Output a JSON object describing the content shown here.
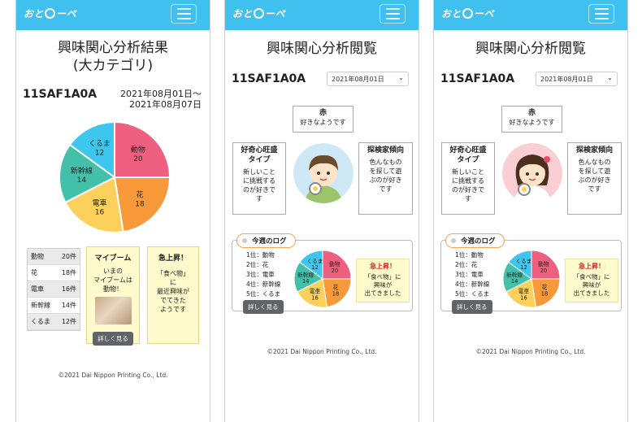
{
  "brand": {
    "logo_text_a": "おと",
    "logo_text_b": "ーペ"
  },
  "colors": {
    "header": "#3fc0ee",
    "doubutsu": "#ef5f7f",
    "hana": "#f99a3a",
    "densha": "#fdd05b",
    "shinkansen": "#43c0a9",
    "kuruma": "#3ec7ee"
  },
  "panel1": {
    "title": "興味関心分析結果",
    "subtitle": "(大カテゴリ)",
    "user_id": "11SAF1A0A",
    "date_from": "2021年08月01日～",
    "date_to": "2021年08月07日",
    "chart_data": {
      "type": "pie",
      "categories": [
        "動物",
        "花",
        "電車",
        "新幹線",
        "くるま"
      ],
      "values": [
        20,
        18,
        16,
        14,
        12
      ]
    },
    "ranking": [
      {
        "label": "動物",
        "count": "20件"
      },
      {
        "label": "花",
        "count": "18件"
      },
      {
        "label": "電車",
        "count": "16件"
      },
      {
        "label": "新幹線",
        "count": "14件"
      },
      {
        "label": "くるま",
        "count": "12件"
      }
    ],
    "myboom": {
      "title": "マイブーム",
      "l1": "いまの",
      "l2": "マイブームは",
      "l3": "動物！",
      "button": "詳しく見る"
    },
    "rising": {
      "title": "急上昇！",
      "l1": "「食べ物」",
      "l2": "に",
      "l3": "最近興味が",
      "l4": "でてきた",
      "l5": "ようです"
    },
    "copyright": "©2021 Dai Nippon Printing Co., Ltd."
  },
  "view": {
    "title": "興味関心分析閲覧",
    "user_id": "11SAF1A0A",
    "date_select": "2021年08月01日",
    "top_bubble": {
      "b": "赤",
      "t": "好きなようです"
    },
    "left_bubble": {
      "b1": "好奇心旺盛",
      "b2": "タイプ",
      "t1": "新しいこと",
      "t2": "に挑戦する",
      "t3": "のが好きで",
      "t4": "す"
    },
    "right_bubble": {
      "b1": "探検家傾向",
      "t1": "色んなもの",
      "t2": "を探して遊",
      "t3": "ぶのが好き",
      "t4": "です"
    },
    "log_title": "今週のログ",
    "log_items": [
      "1位：動物",
      "2位：花",
      "3位：電車",
      "4位：新幹線",
      "5位：くるま"
    ],
    "log_button": "詳しく見る",
    "rising": {
      "t": "急上昇！",
      "l1": "「食べ物」に",
      "l2": "興味が",
      "l3": "出てきました"
    },
    "copyright": "©2021 Dai Nippon Printing Co., Ltd."
  }
}
